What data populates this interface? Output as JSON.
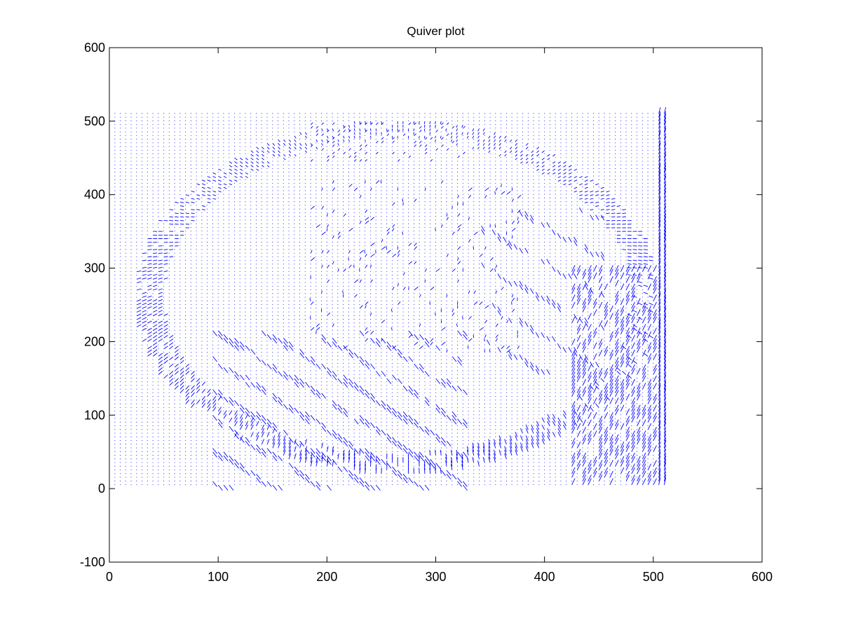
{
  "chart_data": {
    "type": "quiver",
    "title": "Quiver plot",
    "xlabel": "",
    "ylabel": "",
    "xlim": [
      0,
      600
    ],
    "ylim": [
      -100,
      600
    ],
    "x_ticks": [
      0,
      100,
      200,
      300,
      400,
      500,
      600
    ],
    "y_ticks": [
      -100,
      0,
      100,
      200,
      300,
      400,
      500
    ],
    "x_tick_labels": [
      "0",
      "100",
      "200",
      "300",
      "400",
      "500",
      "600"
    ],
    "y_tick_labels": [
      "-100",
      "0",
      "100",
      "200",
      "300",
      "400",
      "500"
    ],
    "grid": false,
    "box": true,
    "arrow_color": "#0000ff",
    "vector_field": {
      "x_range": [
        5,
        510
      ],
      "y_range": [
        5,
        510
      ],
      "approx_spacing": 5
    }
  }
}
